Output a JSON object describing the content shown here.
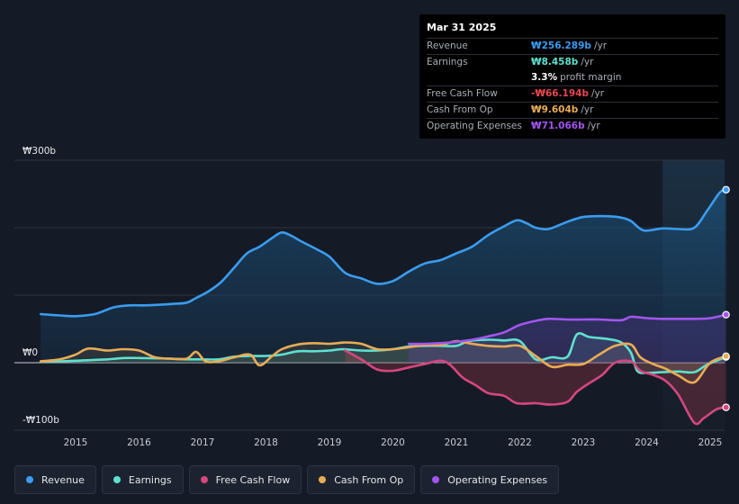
{
  "tooltip": {
    "date": "Mar 31 2025",
    "rows": [
      {
        "label": "Revenue",
        "value": "₩256.289b",
        "unit": "/yr",
        "color": "#3b9cf0"
      },
      {
        "label": "Earnings",
        "value": "₩8.458b",
        "unit": "/yr",
        "color": "#5fe0cf"
      },
      {
        "label": "",
        "value": "3.3%",
        "unit": "profit margin",
        "color": "#ffffff"
      },
      {
        "label": "Free Cash Flow",
        "value": "-₩66.194b",
        "unit": "/yr",
        "color": "#e8474f"
      },
      {
        "label": "Cash From Op",
        "value": "₩9.604b",
        "unit": "/yr",
        "color": "#e8ac55"
      },
      {
        "label": "Operating Expenses",
        "value": "₩71.066b",
        "unit": "/yr",
        "color": "#a256f0"
      }
    ]
  },
  "legend": [
    {
      "label": "Revenue",
      "color": "#3b9cf0"
    },
    {
      "label": "Earnings",
      "color": "#5fe0cf"
    },
    {
      "label": "Free Cash Flow",
      "color": "#d6477f"
    },
    {
      "label": "Cash From Op",
      "color": "#e8ac55"
    },
    {
      "label": "Operating Expenses",
      "color": "#a256f0"
    }
  ],
  "chart_data": {
    "type": "area",
    "title": "",
    "y_tick_labels": [
      "₩300b",
      "₩0",
      "-₩100b"
    ],
    "y_ticks": [
      300,
      0,
      -100
    ],
    "ylim": [
      -100,
      300
    ],
    "xlim": [
      2014.4,
      2025.3
    ],
    "x_tick_labels": [
      "2015",
      "2016",
      "2017",
      "2018",
      "2019",
      "2020",
      "2021",
      "2022",
      "2023",
      "2024",
      "2025"
    ],
    "x_ticks": [
      2015,
      2016,
      2017,
      2018,
      2019,
      2020,
      2021,
      2022,
      2023,
      2024,
      2025
    ],
    "highlight_start": 2024.25,
    "series": [
      {
        "name": "Revenue",
        "color": "#3b9cf0",
        "points": [
          [
            2014.45,
            72
          ],
          [
            2014.75,
            70
          ],
          [
            2015.0,
            69
          ],
          [
            2015.3,
            72
          ],
          [
            2015.6,
            82
          ],
          [
            2015.85,
            85
          ],
          [
            2016.1,
            85
          ],
          [
            2016.5,
            87
          ],
          [
            2016.75,
            89
          ],
          [
            2016.9,
            96
          ],
          [
            2017.1,
            106
          ],
          [
            2017.3,
            120
          ],
          [
            2017.5,
            141
          ],
          [
            2017.7,
            162
          ],
          [
            2017.9,
            172
          ],
          [
            2018.1,
            185
          ],
          [
            2018.25,
            193
          ],
          [
            2018.4,
            188
          ],
          [
            2018.55,
            180
          ],
          [
            2018.8,
            168
          ],
          [
            2019.0,
            157
          ],
          [
            2019.25,
            133
          ],
          [
            2019.5,
            125
          ],
          [
            2019.75,
            117
          ],
          [
            2020.0,
            121
          ],
          [
            2020.25,
            135
          ],
          [
            2020.5,
            147
          ],
          [
            2020.75,
            152
          ],
          [
            2021.0,
            162
          ],
          [
            2021.25,
            172
          ],
          [
            2021.5,
            189
          ],
          [
            2021.75,
            202
          ],
          [
            2021.95,
            211
          ],
          [
            2022.1,
            207
          ],
          [
            2022.25,
            200
          ],
          [
            2022.45,
            198
          ],
          [
            2022.7,
            207
          ],
          [
            2022.95,
            215
          ],
          [
            2023.15,
            217
          ],
          [
            2023.4,
            217
          ],
          [
            2023.6,
            215
          ],
          [
            2023.75,
            210
          ],
          [
            2023.95,
            196
          ],
          [
            2024.25,
            199
          ],
          [
            2024.5,
            198
          ],
          [
            2024.75,
            200
          ],
          [
            2024.95,
            225
          ],
          [
            2025.15,
            252
          ],
          [
            2025.25,
            256.3
          ]
        ]
      },
      {
        "name": "Earnings",
        "color": "#5fe0cf",
        "points": [
          [
            2014.45,
            2
          ],
          [
            2014.75,
            2
          ],
          [
            2015.0,
            3
          ],
          [
            2015.5,
            5
          ],
          [
            2015.75,
            7
          ],
          [
            2016.0,
            7
          ],
          [
            2016.5,
            6
          ],
          [
            2016.75,
            5
          ],
          [
            2017.0,
            5
          ],
          [
            2017.25,
            5
          ],
          [
            2017.5,
            9
          ],
          [
            2017.75,
            10
          ],
          [
            2018.0,
            10
          ],
          [
            2018.25,
            12
          ],
          [
            2018.5,
            17
          ],
          [
            2018.75,
            17
          ],
          [
            2019.0,
            18
          ],
          [
            2019.2,
            20
          ],
          [
            2019.5,
            18
          ],
          [
            2019.75,
            18
          ],
          [
            2020.0,
            20
          ],
          [
            2020.25,
            24
          ],
          [
            2020.5,
            25
          ],
          [
            2020.75,
            25
          ],
          [
            2021.0,
            25
          ],
          [
            2021.2,
            32
          ],
          [
            2021.5,
            34
          ],
          [
            2021.75,
            33
          ],
          [
            2022.0,
            32
          ],
          [
            2022.25,
            5
          ],
          [
            2022.5,
            8
          ],
          [
            2022.75,
            9
          ],
          [
            2022.9,
            42
          ],
          [
            2023.1,
            38
          ],
          [
            2023.4,
            35
          ],
          [
            2023.6,
            30
          ],
          [
            2023.75,
            15
          ],
          [
            2023.85,
            -12
          ],
          [
            2024.0,
            -15
          ],
          [
            2024.25,
            -14
          ],
          [
            2024.5,
            -13
          ],
          [
            2024.75,
            -14
          ],
          [
            2024.95,
            -3
          ],
          [
            2025.25,
            8.5
          ]
        ]
      },
      {
        "name": "Free Cash Flow",
        "color": "#d6477f",
        "points": [
          [
            2019.25,
            18
          ],
          [
            2019.5,
            5
          ],
          [
            2019.75,
            -10
          ],
          [
            2020.0,
            -12
          ],
          [
            2020.25,
            -7
          ],
          [
            2020.5,
            -2
          ],
          [
            2020.75,
            3
          ],
          [
            2020.9,
            -3
          ],
          [
            2021.1,
            -22
          ],
          [
            2021.3,
            -33
          ],
          [
            2021.5,
            -45
          ],
          [
            2021.75,
            -49
          ],
          [
            2021.95,
            -60
          ],
          [
            2022.25,
            -60
          ],
          [
            2022.5,
            -62
          ],
          [
            2022.75,
            -58
          ],
          [
            2022.9,
            -43
          ],
          [
            2023.1,
            -30
          ],
          [
            2023.3,
            -18
          ],
          [
            2023.5,
            0
          ],
          [
            2023.75,
            2
          ],
          [
            2023.9,
            -12
          ],
          [
            2024.1,
            -18
          ],
          [
            2024.3,
            -27
          ],
          [
            2024.5,
            -48
          ],
          [
            2024.75,
            -89
          ],
          [
            2024.9,
            -82
          ],
          [
            2025.1,
            -69
          ],
          [
            2025.25,
            -66.2
          ]
        ]
      },
      {
        "name": "Cash From Op",
        "color": "#e8ac55",
        "points": [
          [
            2014.45,
            2
          ],
          [
            2014.75,
            5
          ],
          [
            2015.0,
            12
          ],
          [
            2015.2,
            21
          ],
          [
            2015.5,
            18
          ],
          [
            2015.75,
            20
          ],
          [
            2016.0,
            18
          ],
          [
            2016.25,
            8
          ],
          [
            2016.5,
            6
          ],
          [
            2016.75,
            6
          ],
          [
            2016.9,
            16
          ],
          [
            2017.05,
            2
          ],
          [
            2017.25,
            2
          ],
          [
            2017.5,
            8
          ],
          [
            2017.75,
            12
          ],
          [
            2017.9,
            -4
          ],
          [
            2018.1,
            10
          ],
          [
            2018.25,
            20
          ],
          [
            2018.5,
            27
          ],
          [
            2018.75,
            29
          ],
          [
            2019.0,
            28
          ],
          [
            2019.25,
            30
          ],
          [
            2019.5,
            28
          ],
          [
            2019.75,
            20
          ],
          [
            2020.0,
            20
          ],
          [
            2020.25,
            23
          ],
          [
            2020.5,
            26
          ],
          [
            2020.75,
            26
          ],
          [
            2021.0,
            32
          ],
          [
            2021.25,
            28
          ],
          [
            2021.5,
            25
          ],
          [
            2021.75,
            24
          ],
          [
            2022.0,
            25
          ],
          [
            2022.25,
            10
          ],
          [
            2022.5,
            -6
          ],
          [
            2022.75,
            -3
          ],
          [
            2023.0,
            -2
          ],
          [
            2023.25,
            12
          ],
          [
            2023.5,
            25
          ],
          [
            2023.75,
            27
          ],
          [
            2023.9,
            8
          ],
          [
            2024.1,
            -2
          ],
          [
            2024.3,
            -9
          ],
          [
            2024.5,
            -19
          ],
          [
            2024.75,
            -29
          ],
          [
            2025.0,
            0
          ],
          [
            2025.25,
            9.6
          ]
        ]
      },
      {
        "name": "Operating Expenses",
        "color": "#a256f0",
        "points": [
          [
            2020.25,
            28
          ],
          [
            2020.5,
            28
          ],
          [
            2020.75,
            29
          ],
          [
            2021.0,
            31
          ],
          [
            2021.25,
            34
          ],
          [
            2021.5,
            39
          ],
          [
            2021.75,
            45
          ],
          [
            2022.0,
            56
          ],
          [
            2022.25,
            62
          ],
          [
            2022.45,
            65
          ],
          [
            2022.75,
            64
          ],
          [
            2023.0,
            64
          ],
          [
            2023.25,
            64
          ],
          [
            2023.6,
            63
          ],
          [
            2023.75,
            68
          ],
          [
            2024.0,
            66
          ],
          [
            2024.25,
            65
          ],
          [
            2024.5,
            65
          ],
          [
            2024.75,
            65
          ],
          [
            2025.0,
            66
          ],
          [
            2025.25,
            71.1
          ]
        ]
      }
    ]
  }
}
